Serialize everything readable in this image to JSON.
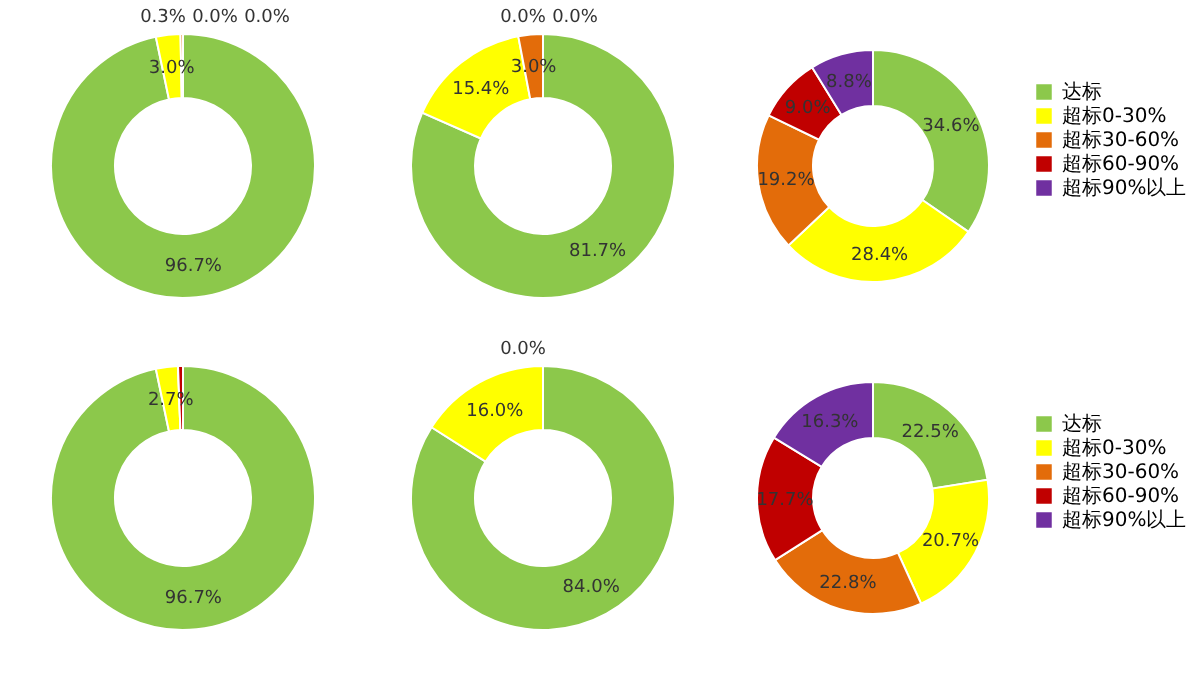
{
  "chart_data": [
    {
      "type": "donut",
      "categories": [
        null,
        null,
        null,
        null,
        null
      ],
      "values": [
        96.7,
        3.0,
        0.3,
        0.0,
        0.0
      ],
      "value_labels": [
        "96.7%",
        "3.0%",
        "0.3%",
        "0.0%",
        "0.0%"
      ],
      "colors": [
        "#8cc84b",
        "#ffff00",
        "#e36c0a",
        "#c00000",
        "#7030a0"
      ],
      "legend": false
    },
    {
      "type": "donut",
      "categories": [
        null,
        null,
        null,
        null,
        null
      ],
      "values": [
        81.7,
        15.4,
        3.0,
        0.0,
        0.0
      ],
      "value_labels": [
        "81.7%",
        "15.4%",
        "3.0%",
        "0.0%",
        "0.0%"
      ],
      "colors": [
        "#8cc84b",
        "#ffff00",
        "#e36c0a",
        "#c00000",
        "#7030a0"
      ],
      "legend": false
    },
    {
      "type": "donut",
      "categories": [
        "达标",
        "超标0-30%",
        "超标30-60%",
        "超标60-90%",
        "超标90%以上"
      ],
      "values": [
        34.6,
        28.4,
        19.2,
        9.0,
        8.8
      ],
      "value_labels": [
        "34.6%",
        "28.4%",
        "19.2%",
        "9.0%",
        "8.8%"
      ],
      "colors": [
        "#8cc84b",
        "#ffff00",
        "#e36c0a",
        "#c00000",
        "#7030a0"
      ],
      "legend": "right"
    },
    {
      "type": "donut",
      "categories": [
        null,
        null,
        null,
        null,
        null
      ],
      "values": [
        96.7,
        2.7,
        0.0,
        0.6,
        0.0
      ],
      "value_labels": [
        "96.7%",
        "2.7%",
        null,
        null,
        null
      ],
      "colors": [
        "#8cc84b",
        "#ffff00",
        "#e36c0a",
        "#c00000",
        "#7030a0"
      ],
      "legend": false
    },
    {
      "type": "donut",
      "categories": [
        null,
        null,
        null,
        null,
        null
      ],
      "values": [
        84.0,
        16.0,
        0.0,
        0.0,
        0.0
      ],
      "value_labels": [
        "84.0%",
        "16.0%",
        "0.0%",
        null,
        null
      ],
      "colors": [
        "#8cc84b",
        "#ffff00",
        "#e36c0a",
        "#c00000",
        "#7030a0"
      ],
      "legend": false
    },
    {
      "type": "donut",
      "categories": [
        "达标",
        "超标0-30%",
        "超标30-60%",
        "超标60-90%",
        "超标90%以上"
      ],
      "values": [
        22.5,
        20.7,
        22.8,
        17.7,
        16.3
      ],
      "value_labels": [
        "22.5%",
        "20.7%",
        "22.8%",
        "17.7%",
        "16.3%"
      ],
      "colors": [
        "#8cc84b",
        "#ffff00",
        "#e36c0a",
        "#c00000",
        "#7030a0"
      ],
      "legend": "right"
    }
  ]
}
